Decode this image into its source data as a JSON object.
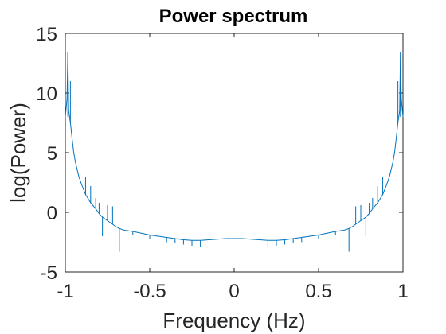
{
  "chart_data": {
    "type": "line",
    "title": "Power spectrum",
    "xlabel": "Frequency (Hz)",
    "ylabel": "log(Power)",
    "xlim": [
      -1,
      1
    ],
    "ylim": [
      -5,
      15
    ],
    "xticks": [
      -1,
      -0.5,
      0,
      0.5,
      1
    ],
    "xtick_labels": [
      "-1",
      "-0.5",
      "0",
      "0.5",
      "1"
    ],
    "yticks": [
      -5,
      0,
      5,
      10,
      15
    ],
    "ytick_labels": [
      "-5",
      "0",
      "5",
      "10",
      "15"
    ],
    "grid": false,
    "series": [
      {
        "color": "#0072BD",
        "x": [
          -1.0,
          -0.99,
          -0.985,
          -0.98,
          -0.97,
          -0.96,
          -0.95,
          -0.94,
          -0.93,
          -0.92,
          -0.9,
          -0.88,
          -0.85,
          -0.82,
          -0.8,
          -0.78,
          -0.75,
          -0.72,
          -0.7,
          -0.68,
          -0.65,
          -0.6,
          -0.55,
          -0.5,
          -0.45,
          -0.4,
          -0.35,
          -0.3,
          -0.25,
          -0.2,
          -0.15,
          -0.1,
          -0.05,
          0.0,
          0.05,
          0.1,
          0.15,
          0.2,
          0.25,
          0.3,
          0.35,
          0.4,
          0.45,
          0.5,
          0.55,
          0.6,
          0.65,
          0.68,
          0.7,
          0.72,
          0.75,
          0.78,
          0.8,
          0.82,
          0.85,
          0.88,
          0.9,
          0.92,
          0.93,
          0.94,
          0.95,
          0.96,
          0.97,
          0.98,
          0.985,
          0.99,
          1.0
        ],
        "y": [
          8.0,
          9.5,
          13.4,
          8.5,
          7.5,
          6.2,
          5.0,
          4.2,
          3.6,
          3.0,
          2.2,
          1.5,
          0.8,
          0.3,
          -0.1,
          -0.4,
          -0.7,
          -1.0,
          -1.2,
          -1.35,
          -1.5,
          -1.6,
          -1.75,
          -1.9,
          -2.0,
          -2.1,
          -2.2,
          -2.3,
          -2.35,
          -2.35,
          -2.3,
          -2.25,
          -2.2,
          -2.2,
          -2.2,
          -2.25,
          -2.3,
          -2.35,
          -2.35,
          -2.3,
          -2.2,
          -2.1,
          -2.0,
          -1.9,
          -1.75,
          -1.6,
          -1.5,
          -1.35,
          -1.2,
          -1.0,
          -0.7,
          -0.4,
          -0.1,
          0.3,
          0.8,
          1.5,
          2.2,
          3.0,
          3.6,
          4.2,
          5.0,
          6.2,
          7.5,
          8.5,
          13.4,
          9.5,
          8.0
        ]
      }
    ],
    "spikes": [
      {
        "x": -0.985,
        "y_from": 8.0,
        "y_to": 13.4
      },
      {
        "x": -0.97,
        "y_from": 7.5,
        "y_to": 11.0
      },
      {
        "x": -0.88,
        "y_from": 1.5,
        "y_to": 3.0
      },
      {
        "x": -0.85,
        "y_from": 0.8,
        "y_to": 2.2
      },
      {
        "x": -0.82,
        "y_from": 0.3,
        "y_to": 1.2
      },
      {
        "x": -0.8,
        "y_from": -0.1,
        "y_to": 0.8
      },
      {
        "x": -0.78,
        "y_from": -0.4,
        "y_to": -2.0
      },
      {
        "x": -0.75,
        "y_from": -0.7,
        "y_to": 0.6
      },
      {
        "x": -0.72,
        "y_from": -1.0,
        "y_to": 0.5
      },
      {
        "x": -0.68,
        "y_from": -1.35,
        "y_to": -3.3
      },
      {
        "x": -0.6,
        "y_from": -1.6,
        "y_to": -1.9
      },
      {
        "x": -0.5,
        "y_from": -1.9,
        "y_to": -2.2
      },
      {
        "x": -0.4,
        "y_from": -2.1,
        "y_to": -2.5
      },
      {
        "x": -0.35,
        "y_from": -2.2,
        "y_to": -2.6
      },
      {
        "x": -0.3,
        "y_from": -2.3,
        "y_to": -2.7
      },
      {
        "x": -0.25,
        "y_from": -2.35,
        "y_to": -2.8
      },
      {
        "x": -0.2,
        "y_from": -2.35,
        "y_to": -2.9
      },
      {
        "x": 0.2,
        "y_from": -2.35,
        "y_to": -2.9
      },
      {
        "x": 0.25,
        "y_from": -2.35,
        "y_to": -2.8
      },
      {
        "x": 0.3,
        "y_from": -2.3,
        "y_to": -2.7
      },
      {
        "x": 0.35,
        "y_from": -2.2,
        "y_to": -2.6
      },
      {
        "x": 0.4,
        "y_from": -2.1,
        "y_to": -2.5
      },
      {
        "x": 0.5,
        "y_from": -1.9,
        "y_to": -2.2
      },
      {
        "x": 0.6,
        "y_from": -1.6,
        "y_to": -1.9
      },
      {
        "x": 0.68,
        "y_from": -1.35,
        "y_to": -3.3
      },
      {
        "x": 0.72,
        "y_from": -1.0,
        "y_to": 0.5
      },
      {
        "x": 0.75,
        "y_from": -0.7,
        "y_to": 0.6
      },
      {
        "x": 0.78,
        "y_from": -0.4,
        "y_to": -2.0
      },
      {
        "x": 0.8,
        "y_from": -0.1,
        "y_to": 0.8
      },
      {
        "x": 0.82,
        "y_from": 0.3,
        "y_to": 1.2
      },
      {
        "x": 0.85,
        "y_from": 0.8,
        "y_to": 2.2
      },
      {
        "x": 0.88,
        "y_from": 1.5,
        "y_to": 3.0
      },
      {
        "x": 0.97,
        "y_from": 7.5,
        "y_to": 11.0
      },
      {
        "x": 0.985,
        "y_from": 8.0,
        "y_to": 13.4
      }
    ],
    "colors": {
      "line": "#0072BD",
      "axis": "#262626",
      "background": "#ffffff"
    }
  }
}
